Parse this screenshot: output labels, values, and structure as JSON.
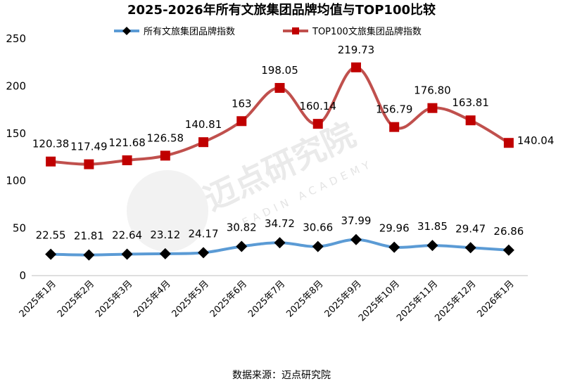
{
  "chart_data": {
    "type": "line",
    "title": "2025-2026年所有文旅集团品牌均值与TOP100比较",
    "categories": [
      "2025年1月",
      "2025年2月",
      "2025年3月",
      "2025年4月",
      "2025年5月",
      "2025年6月",
      "2025年7月",
      "2025年8月",
      "2025年9月",
      "2025年10月",
      "2025年11月",
      "2025年12月",
      "2026年1月"
    ],
    "ylim": [
      0,
      250
    ],
    "yticks": [
      0,
      50,
      100,
      150,
      200,
      250
    ],
    "grid": false,
    "legend_position": "top",
    "series": [
      {
        "name": "所有文旅集团品牌指数",
        "color": "#5b9bd5",
        "marker": "diamond",
        "marker_color": "#000000",
        "values": [
          22.55,
          21.81,
          22.64,
          23.12,
          24.17,
          30.82,
          34.72,
          30.66,
          37.99,
          29.96,
          31.85,
          29.47,
          26.86
        ],
        "labels": [
          "22.55",
          "21.81",
          "22.64",
          "23.12",
          "24.17",
          "30.82",
          "34.72",
          "30.66",
          "37.99",
          "29.96",
          "31.85",
          "29.47",
          "26.86"
        ]
      },
      {
        "name": "TOP100文旅集团品牌指数",
        "color": "#c0504d",
        "marker": "square",
        "marker_color": "#c00000",
        "values": [
          120.38,
          117.49,
          121.68,
          126.58,
          140.81,
          163,
          198.05,
          160.14,
          219.73,
          156.79,
          176.8,
          163.81,
          140.04
        ],
        "labels": [
          "120.38",
          "117.49",
          "121.68",
          "126.58",
          "140.81",
          "163",
          "198.05",
          "160.14",
          "219.73",
          "156.79",
          "176.80",
          "163.81",
          "140.04"
        ]
      }
    ]
  },
  "watermark": {
    "text": "迈点研究院",
    "subtext": "MEADIN ACADEMY"
  },
  "source": "数据来源：迈点研究院"
}
